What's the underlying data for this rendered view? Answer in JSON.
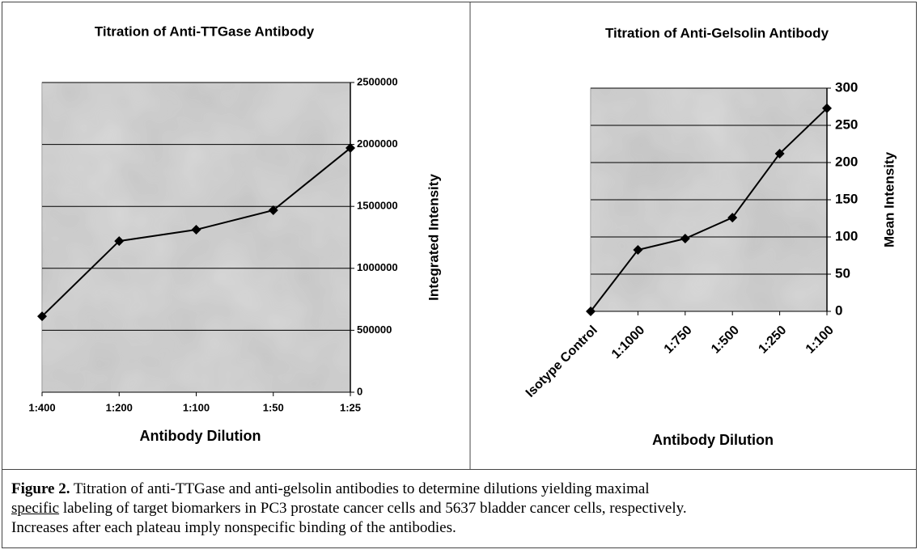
{
  "chart_data": [
    {
      "type": "line",
      "title": "Titration of Anti-TTGase Antibody",
      "x_label": "Antibody Dilution",
      "y_label": "Integrated Intensity",
      "categories": [
        "1:400",
        "1:200",
        "1:100",
        "1:50",
        "1:25"
      ],
      "series": [
        {
          "name": "Integrated Intensity",
          "color": "#000000",
          "values": [
            613000,
            1220000,
            1312000,
            1469000,
            1971000
          ]
        }
      ],
      "ylim": [
        0,
        2500000
      ],
      "yticks": [
        0,
        500000,
        1000000,
        1500000,
        2000000,
        2500000
      ],
      "y_axis_position": "right",
      "grid": true,
      "x_label_rotation": 0
    },
    {
      "type": "line",
      "title": "Titration of Anti-Gelsolin Antibody",
      "x_label": "Antibody Dilution",
      "y_label": "Mean Intensity",
      "categories": [
        "Isotype Control",
        "1:1000",
        "1:750",
        "1:500",
        "1:250",
        "1:100"
      ],
      "series": [
        {
          "name": "Mean Intensity",
          "color": "#000000",
          "values": [
            0,
            82.6,
            97.8,
            126,
            212,
            273
          ]
        }
      ],
      "ylim": [
        0,
        300
      ],
      "yticks": [
        0,
        50,
        100,
        150,
        200,
        250,
        300
      ],
      "y_axis_position": "right",
      "grid": true,
      "x_label_rotation": -45
    }
  ],
  "caption": {
    "label": "Figure 2.",
    "line1": " Titration of anti-TTGase and anti-gelsolin antibodies to determine dilutions yielding maximal",
    "emphasis": "specific",
    "line2": " labeling of target biomarkers in PC3 prostate cancer cells and 5637 bladder cancer cells, respectively.",
    "line3": "Increases after each plateau imply nonspecific binding of the antibodies."
  }
}
